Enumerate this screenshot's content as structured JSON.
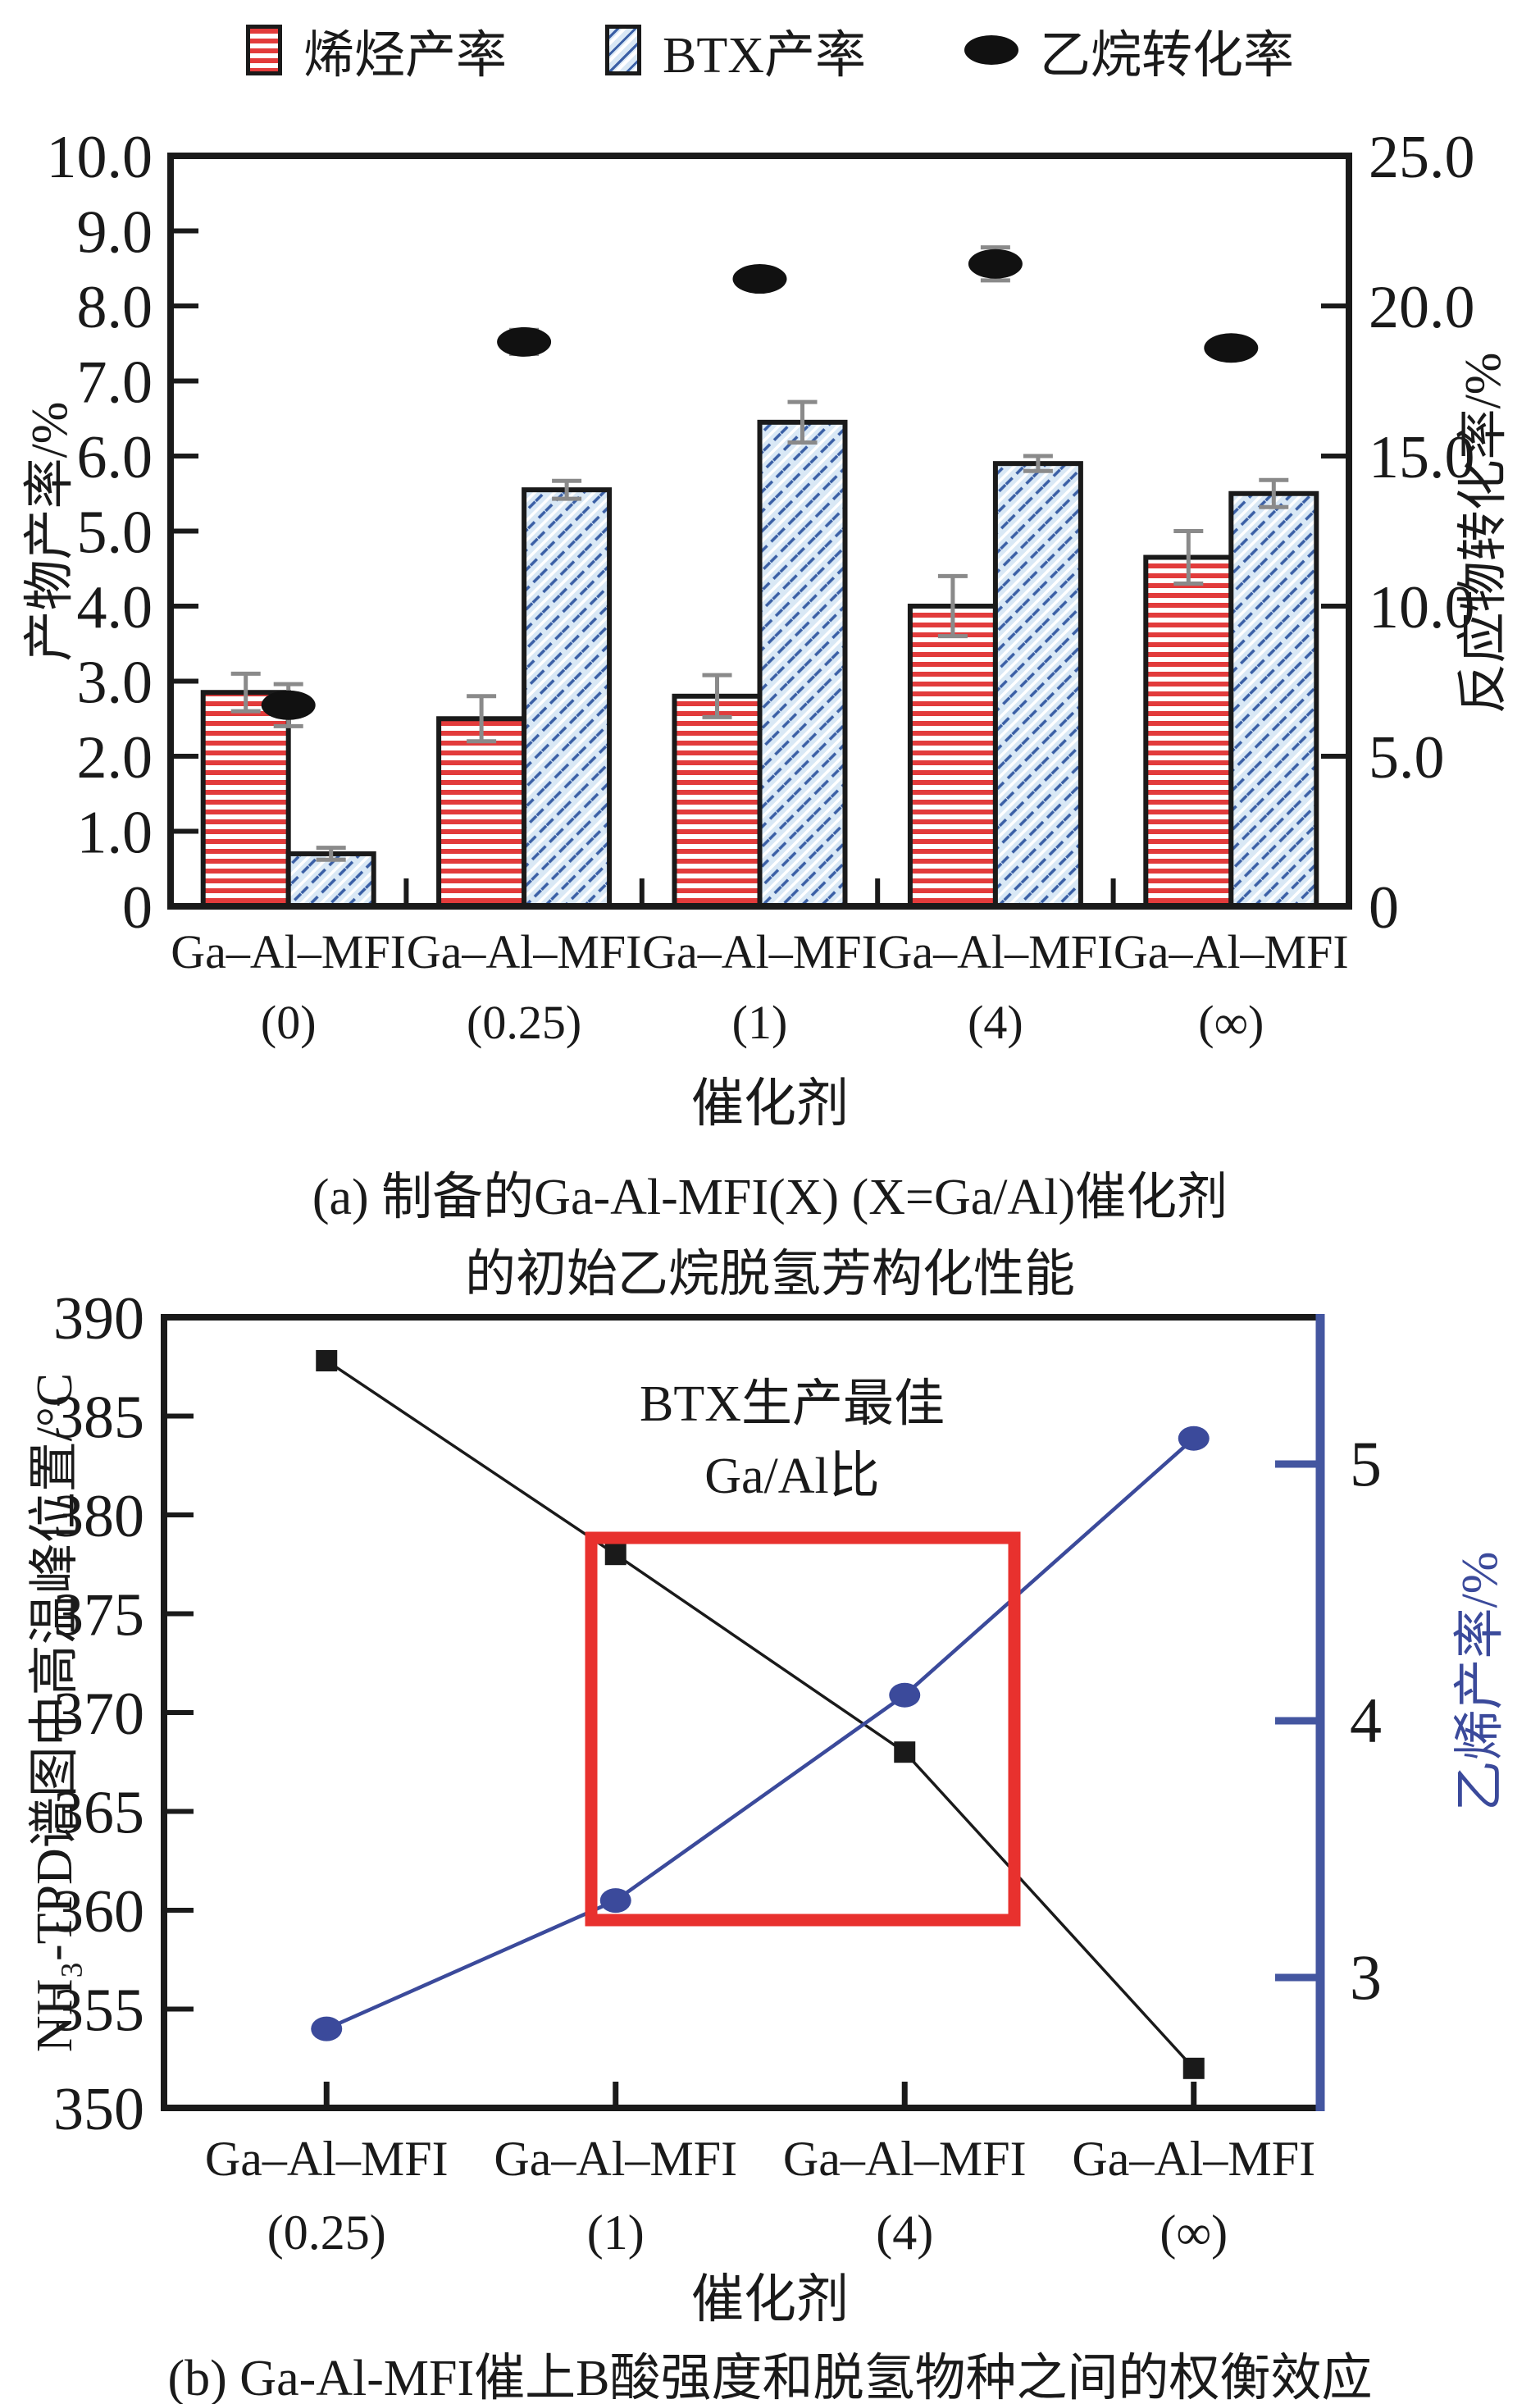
{
  "legend": {
    "items": [
      {
        "label": "烯烃产率",
        "swatch": "red-hstripe"
      },
      {
        "label": "BTX产率",
        "swatch": "blue-hatch"
      },
      {
        "label": "乙烷转化率",
        "swatch": "black-ellipse"
      }
    ]
  },
  "colors": {
    "black": "#1a1a1a",
    "red_stripe": "#e23b3b",
    "blue_hatch_bg": "#d9e8f5",
    "blue_hatch_line": "#3a5fa5",
    "gray_err": "#8a8a8a",
    "dot_black": "#111111",
    "line_blue": "#3b4a9b",
    "axis_blue": "#4456a0",
    "box_red": "#e8312e"
  },
  "chart_data": [
    {
      "id": "a",
      "type": "bar",
      "categories": [
        "Ga–Al–MFI",
        "Ga–Al–MFI",
        "Ga–Al–MFI",
        "Ga–Al–MFI",
        "Ga–Al–MFI"
      ],
      "category_sub": [
        "(0)",
        "(0.25)",
        "(1)",
        "(4)",
        "(∞)"
      ],
      "xlabel": "催化剂",
      "ylabel_left": "产物产率/%",
      "ylabel_right": "反应物转化率/%",
      "ylim_left": [
        0,
        10
      ],
      "ylim_right": [
        0,
        25
      ],
      "yticks_left": [
        [
          "10.0",
          10
        ],
        [
          "9.0",
          9
        ],
        [
          "8.0",
          8
        ],
        [
          "7.0",
          7
        ],
        [
          "6.0",
          6
        ],
        [
          "5.0",
          5
        ],
        [
          "4.0",
          4
        ],
        [
          "3.0",
          3
        ],
        [
          "2.0",
          2
        ],
        [
          "1.0",
          1
        ],
        [
          "0",
          0
        ]
      ],
      "yticks_right": [
        [
          "25.0",
          25
        ],
        [
          "20.0",
          20
        ],
        [
          "15.0",
          15
        ],
        [
          "10.0",
          10
        ],
        [
          "5.0",
          5
        ],
        [
          "0",
          0
        ]
      ],
      "grid": false,
      "legend_position": "top",
      "series": [
        {
          "name": "烯烃产率",
          "axis": "left",
          "kind": "bar",
          "pattern": "red-hstripe",
          "values": [
            2.85,
            2.5,
            2.8,
            4.0,
            4.65
          ],
          "errors": [
            0.25,
            0.3,
            0.28,
            0.4,
            0.35
          ]
        },
        {
          "name": "BTX产率",
          "axis": "left",
          "kind": "bar",
          "pattern": "blue-hatch",
          "values": [
            0.7,
            5.55,
            6.45,
            5.9,
            5.5
          ],
          "errors": [
            0.08,
            0.12,
            0.27,
            0.1,
            0.18
          ]
        },
        {
          "name": "乙烷转化率",
          "axis": "right",
          "kind": "scatter",
          "marker": "ellipse",
          "values": [
            6.7,
            18.8,
            20.9,
            21.4,
            18.6
          ],
          "errors": [
            0.7,
            0.4,
            0.25,
            0.55,
            0.3
          ]
        }
      ],
      "caption": [
        "(a) 制备的Ga-Al-MFI(X) (X=Ga/Al)催化剂",
        "的初始乙烷脱氢芳构化性能"
      ]
    },
    {
      "id": "b",
      "type": "line",
      "categories": [
        "Ga–Al–MFI",
        "Ga–Al–MFI",
        "Ga–Al–MFI",
        "Ga–Al–MFI"
      ],
      "category_sub": [
        "(0.25)",
        "(1)",
        "(4)",
        "(∞)"
      ],
      "xlabel": "催化剂",
      "ylabel_left": "NH₃-TPD谱图中高温峰位置/°C",
      "ylabel_right": "乙烯产率/%",
      "ylim_left": [
        350,
        390
      ],
      "ylim_right": [
        2.5,
        5.6
      ],
      "yticks_left": [
        [
          "390",
          390
        ],
        [
          "385",
          385
        ],
        [
          "380",
          380
        ],
        [
          "375",
          375
        ],
        [
          "370",
          370
        ],
        [
          "365",
          365
        ],
        [
          "360",
          360
        ],
        [
          "355",
          355
        ],
        [
          "350",
          350
        ]
      ],
      "yticks_right": [
        [
          "5",
          5
        ],
        [
          "4",
          4
        ],
        [
          "3",
          3
        ]
      ],
      "grid": false,
      "series": [
        {
          "name": "NH₃-TPD高温峰位置",
          "axis": "left",
          "marker": "square",
          "values": [
            387.8,
            378,
            368,
            352
          ]
        },
        {
          "name": "乙烯产率",
          "axis": "right",
          "marker": "circle",
          "values": [
            2.8,
            3.3,
            4.1,
            5.1
          ]
        }
      ],
      "annotation": {
        "lines": [
          "BTX生产最佳",
          "Ga/Al比"
        ],
        "box": "red-rect"
      },
      "caption": [
        "(b) Ga-Al-MFI催上B酸强度和脱氢物种之间的权衡效应"
      ]
    }
  ]
}
